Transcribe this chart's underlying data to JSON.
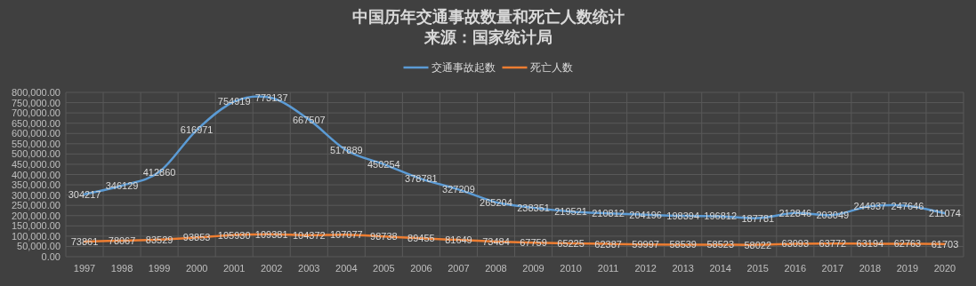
{
  "chart_data": {
    "type": "line",
    "title": "中国历年交通事故数量和死亡人数统计",
    "subtitle": "来源：国家统计局",
    "categories": [
      "1997",
      "1998",
      "1999",
      "2000",
      "2001",
      "2002",
      "2003",
      "2004",
      "2005",
      "2006",
      "2007",
      "2008",
      "2009",
      "2010",
      "2011",
      "2012",
      "2013",
      "2014",
      "2015",
      "2016",
      "2017",
      "2018",
      "2019",
      "2020"
    ],
    "series": [
      {
        "name": "交通事故起数",
        "color": "#5b9bd5",
        "values": [
          304217,
          346129,
          412860,
          616971,
          754919,
          773137,
          667507,
          517889,
          450254,
          378781,
          327209,
          265204,
          238351,
          219521,
          210812,
          204196,
          198394,
          196812,
          187781,
          212846,
          203049,
          244937,
          247646,
          211074
        ]
      },
      {
        "name": "死亡人数",
        "color": "#ed7d31",
        "values": [
          73861,
          78067,
          83529,
          93853,
          105930,
          109381,
          104372,
          107077,
          98738,
          89455,
          81649,
          73484,
          67759,
          65225,
          62387,
          59997,
          58539,
          58523,
          58022,
          63093,
          63772,
          63194,
          62763,
          61703
        ]
      }
    ],
    "ylim": [
      0,
      800000
    ],
    "yticks": [
      {
        "value": 0,
        "label": "0.00"
      },
      {
        "value": 50000,
        "label": "50,000.00"
      },
      {
        "value": 100000,
        "label": "100,000.00"
      },
      {
        "value": 150000,
        "label": "150,000.00"
      },
      {
        "value": 200000,
        "label": "200,000.00"
      },
      {
        "value": 250000,
        "label": "250,000.00"
      },
      {
        "value": 300000,
        "label": "300,000.00"
      },
      {
        "value": 350000,
        "label": "350,000.00"
      },
      {
        "value": 400000,
        "label": "400,000.00"
      },
      {
        "value": 450000,
        "label": "450,000.00"
      },
      {
        "value": 500000,
        "label": "500,000.00"
      },
      {
        "value": 550000,
        "label": "550,000.00"
      },
      {
        "value": 600000,
        "label": "600,000.00"
      },
      {
        "value": 650000,
        "label": "650,000.00"
      },
      {
        "value": 700000,
        "label": "700,000.00"
      },
      {
        "value": 750000,
        "label": "750,000.00"
      },
      {
        "value": 800000,
        "label": "800,000.00"
      }
    ],
    "grid": true,
    "legend": "top",
    "data_labels": true,
    "marker": "none",
    "line_style": "solid"
  }
}
